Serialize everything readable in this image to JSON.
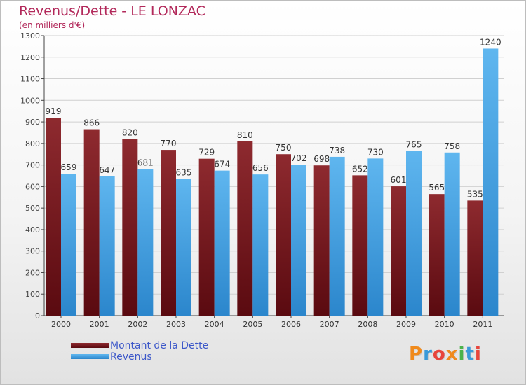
{
  "chart_data": {
    "type": "bar",
    "title": "Revenus/Dette - LE LONZAC",
    "subtitle": "(en milliers d'€)",
    "categories": [
      "2000",
      "2001",
      "2002",
      "2003",
      "2004",
      "2005",
      "2006",
      "2007",
      "2008",
      "2009",
      "2010",
      "2011"
    ],
    "series": [
      {
        "name": "Montant de la Dette",
        "color": "#7a1a1f",
        "values": [
          919,
          866,
          820,
          770,
          729,
          810,
          750,
          698,
          652,
          601,
          565,
          535
        ]
      },
      {
        "name": "Revenus",
        "color": "#4aa3e0",
        "values": [
          659,
          647,
          681,
          635,
          674,
          656,
          702,
          738,
          730,
          765,
          758,
          1240
        ]
      }
    ],
    "ylim": [
      0,
      1300
    ],
    "yticks": [
      0,
      100,
      200,
      300,
      400,
      500,
      600,
      700,
      800,
      900,
      1000,
      1100,
      1200,
      1300
    ],
    "grid": true,
    "legend_position": "bottom-left"
  },
  "logo": {
    "letters": [
      "P",
      "r",
      "o",
      "x",
      "i",
      "t",
      "i"
    ],
    "colors": [
      "#f08a1c",
      "#3a9ad9",
      "#e8453c",
      "#f08a1c",
      "#4bb34b",
      "#3a9ad9",
      "#e8453c"
    ]
  }
}
